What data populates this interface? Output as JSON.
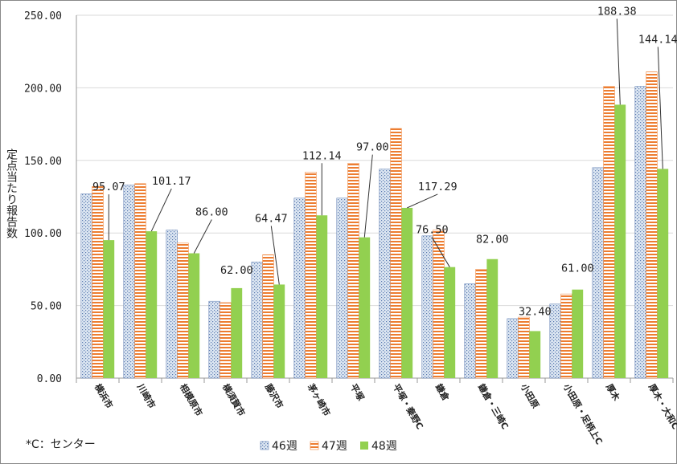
{
  "chart_data": {
    "type": "bar",
    "title": "",
    "xlabel": "",
    "ylabel": "定点当たり報告数",
    "ylim": [
      0,
      250
    ],
    "yticks": [
      "0.00",
      "50.00",
      "100.00",
      "150.00",
      "200.00",
      "250.00"
    ],
    "grid": true,
    "legend_position": "bottom",
    "categories": [
      "横浜市",
      "川崎市",
      "相模原市",
      "横須賀市",
      "藤沢市",
      "茅ヶ崎市",
      "平塚",
      "平塚・秦野C",
      "鎌倉",
      "鎌倉・三崎C",
      "小田原",
      "小田原・足柄上C",
      "厚木",
      "厚木・大和C"
    ],
    "series": [
      {
        "name": "46週",
        "values": [
          127,
          133,
          102,
          53,
          80,
          124,
          124,
          144,
          98,
          65,
          41,
          51,
          145,
          201
        ]
      },
      {
        "name": "47週",
        "values": [
          132,
          134,
          93,
          52,
          85,
          142,
          148,
          172,
          102,
          75,
          42,
          58,
          201,
          211
        ]
      },
      {
        "name": "48週",
        "values": [
          95.07,
          101.17,
          86.0,
          62.0,
          64.47,
          112.14,
          97.0,
          117.29,
          76.5,
          82.0,
          32.4,
          61.0,
          188.38,
          144.14
        ]
      }
    ],
    "data_labels": [
      "95.07",
      "101.17",
      "86.00",
      "62.00",
      "64.47",
      "112.14",
      "97.00",
      "117.29",
      "76.50",
      "82.00",
      "32.40",
      "61.00",
      "188.38",
      "144.14"
    ],
    "colors": {
      "s46_fill": "#dce6f2",
      "s46_hatch": "#5b7bb0",
      "s47_fill": "#ffffff",
      "s47_stripe": "#ed7d31",
      "s48": "#92d050",
      "grid": "#d9d9d9",
      "axis": "#999999"
    }
  },
  "note": "*C：センター"
}
